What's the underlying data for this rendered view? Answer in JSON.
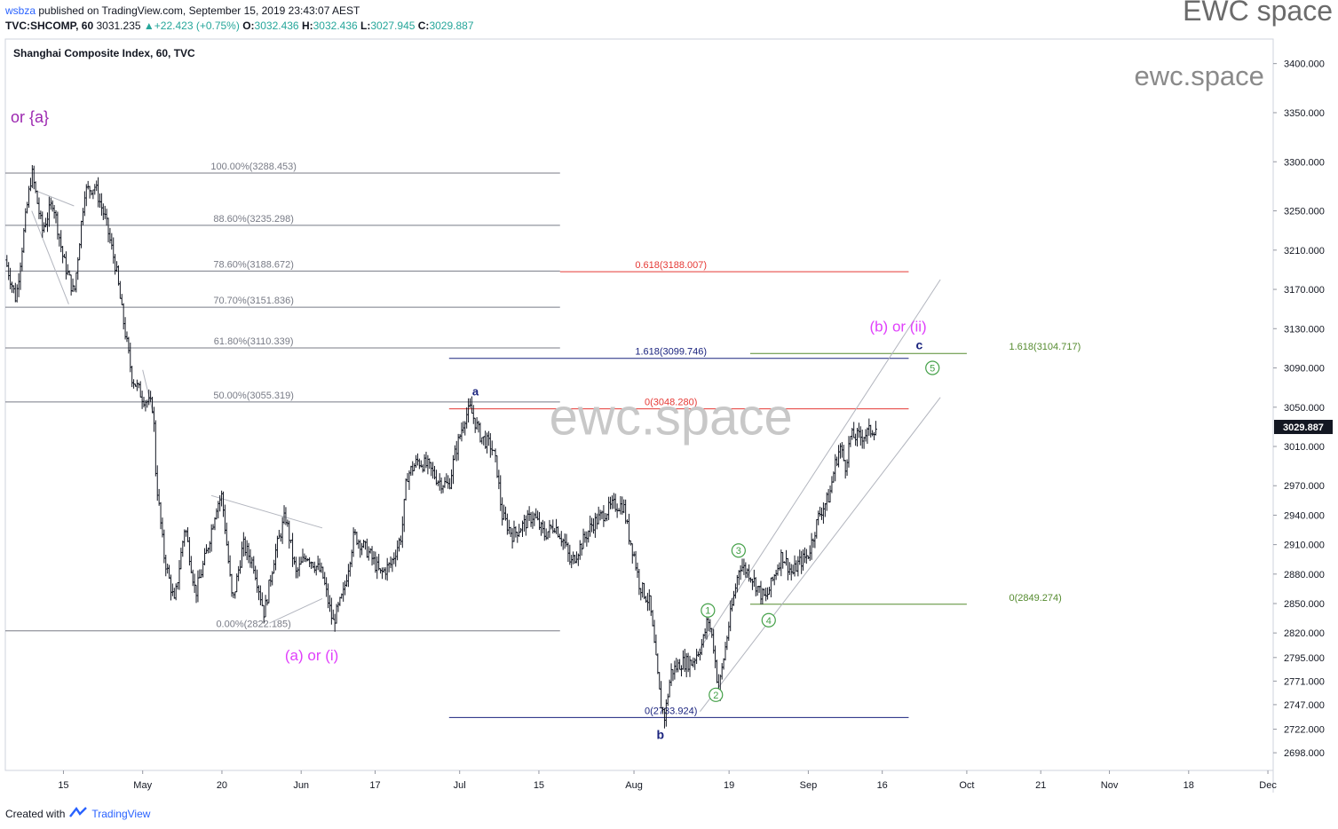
{
  "header": {
    "user": "wsbza",
    "published": "published on TradingView.com, September 15, 2019 23:43:07 AEST",
    "symbol": "TVC:SHCOMP, 60",
    "last": "3031.235",
    "change": "+22.423 (+0.75%)",
    "o_label": "O:",
    "o": "3032.436",
    "h_label": "H:",
    "h": "3032.436",
    "l_label": "L:",
    "l": "3027.945",
    "c_label": "C:",
    "c": "3029.887"
  },
  "brand": "EWC space",
  "footer": {
    "created": "Created with",
    "tv": "TradingView"
  },
  "colors": {
    "fib": "#787b86",
    "red": "#e53935",
    "blue": "#1a237e",
    "green": "#558b2f",
    "magenta": "#e040fb",
    "purple": "#9c27b0",
    "candle": "#131722",
    "price_tag": "#131722",
    "channel": "#b2b5be"
  },
  "chart_data": {
    "type": "candlestick",
    "title": "Shanghai Composite Index, 60, TVC",
    "last_price": "3029.887",
    "y_axis": {
      "range": [
        2680,
        3425
      ],
      "ticks": [
        {
          "v": 3400,
          "label": "3400.000"
        },
        {
          "v": 3350,
          "label": "3350.000"
        },
        {
          "v": 3300,
          "label": "3300.000"
        },
        {
          "v": 3250,
          "label": "3250.000"
        },
        {
          "v": 3210,
          "label": "3210.000"
        },
        {
          "v": 3170,
          "label": "3170.000"
        },
        {
          "v": 3130,
          "label": "3130.000"
        },
        {
          "v": 3090,
          "label": "3090.000"
        },
        {
          "v": 3050,
          "label": "3050.000"
        },
        {
          "v": 3010,
          "label": "3010.000"
        },
        {
          "v": 2970,
          "label": "2970.000"
        },
        {
          "v": 2940,
          "label": "2940.000"
        },
        {
          "v": 2910,
          "label": "2910.000"
        },
        {
          "v": 2880,
          "label": "2880.000"
        },
        {
          "v": 2850,
          "label": "2850.000"
        },
        {
          "v": 2820,
          "label": "2820.000"
        },
        {
          "v": 2795,
          "label": "2795.000"
        },
        {
          "v": 2771,
          "label": "2771.000"
        },
        {
          "v": 2747,
          "label": "2747.000"
        },
        {
          "v": 2722,
          "label": "2722.000"
        },
        {
          "v": 2698,
          "label": "2698.000"
        }
      ]
    },
    "x_axis": {
      "range": [
        0,
        240
      ],
      "ticks": [
        {
          "v": 11,
          "label": "15"
        },
        {
          "v": 26,
          "label": "May"
        },
        {
          "v": 41,
          "label": "20"
        },
        {
          "v": 56,
          "label": "Jun"
        },
        {
          "v": 70,
          "label": "17"
        },
        {
          "v": 86,
          "label": "Jul"
        },
        {
          "v": 101,
          "label": "15"
        },
        {
          "v": 119,
          "label": "Aug"
        },
        {
          "v": 137,
          "label": "19"
        },
        {
          "v": 152,
          "label": "Sep"
        },
        {
          "v": 166,
          "label": "16"
        },
        {
          "v": 182,
          "label": "Oct"
        },
        {
          "v": 196,
          "label": "21"
        },
        {
          "v": 209,
          "label": "Nov"
        },
        {
          "v": 224,
          "label": "18"
        },
        {
          "v": 239,
          "label": "Dec"
        }
      ]
    },
    "price_path": [
      [
        0,
        3200
      ],
      [
        2,
        3160
      ],
      [
        4,
        3250
      ],
      [
        5,
        3290
      ],
      [
        7,
        3230
      ],
      [
        9,
        3260
      ],
      [
        11,
        3200
      ],
      [
        13,
        3165
      ],
      [
        15,
        3270
      ],
      [
        17,
        3275
      ],
      [
        19,
        3240
      ],
      [
        21,
        3190
      ],
      [
        22,
        3150
      ],
      [
        24,
        3080
      ],
      [
        26,
        3060
      ],
      [
        28,
        3050
      ],
      [
        28.5,
        2980
      ],
      [
        30,
        2900
      ],
      [
        32,
        2850
      ],
      [
        34,
        2930
      ],
      [
        36,
        2860
      ],
      [
        38,
        2900
      ],
      [
        40,
        2950
      ],
      [
        41,
        2960
      ],
      [
        43,
        2850
      ],
      [
        45,
        2910
      ],
      [
        47,
        2890
      ],
      [
        49,
        2840
      ],
      [
        51,
        2900
      ],
      [
        53,
        2940
      ],
      [
        55,
        2880
      ],
      [
        57,
        2900
      ],
      [
        60,
        2880
      ],
      [
        62,
        2830
      ],
      [
        64,
        2860
      ],
      [
        66,
        2920
      ],
      [
        69,
        2900
      ],
      [
        71,
        2880
      ],
      [
        73,
        2890
      ],
      [
        75,
        2920
      ],
      [
        76,
        2980
      ],
      [
        78,
        2995
      ],
      [
        80,
        2990
      ],
      [
        82,
        2975
      ],
      [
        84,
        2970
      ],
      [
        85,
        3000
      ],
      [
        87,
        3040
      ],
      [
        88,
        3048
      ],
      [
        90,
        3020
      ],
      [
        92,
        3010
      ],
      [
        93,
        2990
      ],
      [
        94,
        2940
      ],
      [
        96,
        2920
      ],
      [
        98,
        2930
      ],
      [
        100,
        2940
      ],
      [
        102,
        2920
      ],
      [
        104,
        2930
      ],
      [
        106,
        2910
      ],
      [
        107,
        2890
      ],
      [
        109,
        2910
      ],
      [
        111,
        2930
      ],
      [
        113,
        2940
      ],
      [
        115,
        2950
      ],
      [
        117,
        2950
      ],
      [
        118,
        2920
      ],
      [
        119,
        2900
      ],
      [
        120,
        2870
      ],
      [
        122,
        2850
      ],
      [
        123,
        2800
      ],
      [
        124,
        2750
      ],
      [
        124.8,
        2734
      ],
      [
        126,
        2780
      ],
      [
        128,
        2790
      ],
      [
        130,
        2790
      ],
      [
        132,
        2810
      ],
      [
        133,
        2835
      ],
      [
        134,
        2810
      ],
      [
        135,
        2760
      ],
      [
        137,
        2830
      ],
      [
        138,
        2860
      ],
      [
        139,
        2890
      ],
      [
        141,
        2880
      ],
      [
        143,
        2860
      ],
      [
        144,
        2855
      ],
      [
        145,
        2870
      ],
      [
        147,
        2900
      ],
      [
        149,
        2880
      ],
      [
        150,
        2890
      ],
      [
        152,
        2900
      ],
      [
        154,
        2940
      ],
      [
        156,
        2960
      ],
      [
        157,
        2990
      ],
      [
        158,
        3010
      ],
      [
        159,
        2990
      ],
      [
        160,
        3020
      ],
      [
        162,
        3020
      ],
      [
        163.5,
        3025
      ],
      [
        165,
        3030
      ]
    ],
    "horizontal_levels": [
      {
        "label": "100.00%(3288.453)",
        "price": 3288.453,
        "x0": 0,
        "x1": 105,
        "color": "fib",
        "label_x": 47
      },
      {
        "label": "88.60%(3235.298)",
        "price": 3235.298,
        "x0": 0,
        "x1": 105,
        "color": "fib",
        "label_x": 47
      },
      {
        "label": "78.60%(3188.672)",
        "price": 3188.672,
        "x0": 0,
        "x1": 105,
        "color": "fib",
        "label_x": 47
      },
      {
        "label": "70.70%(3151.836)",
        "price": 3151.836,
        "x0": 0,
        "x1": 105,
        "color": "fib",
        "label_x": 47
      },
      {
        "label": "61.80%(3110.339)",
        "price": 3110.339,
        "x0": 0,
        "x1": 105,
        "color": "fib",
        "label_x": 47
      },
      {
        "label": "50.00%(3055.319)",
        "price": 3055.319,
        "x0": 0,
        "x1": 105,
        "color": "fib",
        "label_x": 47
      },
      {
        "label": "0.00%(2822.185)",
        "price": 2822.185,
        "x0": 0,
        "x1": 105,
        "color": "fib",
        "label_x": 47
      },
      {
        "label": "0.618(3188.007)",
        "price": 3188.007,
        "x0": 105,
        "x1": 171,
        "color": "red",
        "label_x": 126
      },
      {
        "label": "0(3048.280)",
        "price": 3048.28,
        "x0": 84,
        "x1": 171,
        "color": "red",
        "label_x": 126
      },
      {
        "label": "1.618(3099.746)",
        "price": 3099.746,
        "x0": 84,
        "x1": 171,
        "color": "blue",
        "label_x": 126
      },
      {
        "label": "0(2733.924)",
        "price": 2733.924,
        "x0": 84,
        "x1": 171,
        "color": "blue",
        "label_x": 126
      },
      {
        "label": "1.618(3104.717)",
        "price": 3104.717,
        "x0": 141,
        "x1": 182,
        "color": "green",
        "label_x": 190
      },
      {
        "label": "0(2849.274)",
        "price": 2849.274,
        "x0": 141,
        "x1": 182,
        "color": "green",
        "label_x": 190
      }
    ],
    "wave_labels": [
      {
        "text": "or {a}",
        "x": 1,
        "price": 3340,
        "color": "purple",
        "size": 18
      },
      {
        "text": "(a) or (i)",
        "x": 58,
        "price": 2792,
        "color": "magenta",
        "size": 17
      },
      {
        "text": "a",
        "x": 89,
        "price": 3062,
        "color": "blue",
        "size": 13,
        "bold": true
      },
      {
        "text": "b",
        "x": 124,
        "price": 2712,
        "color": "blue",
        "size": 14,
        "bold": true
      },
      {
        "text": "(b) or (ii)",
        "x": 169,
        "price": 3127,
        "color": "magenta",
        "size": 17
      },
      {
        "text": "c",
        "x": 173,
        "price": 3109,
        "color": "blue",
        "size": 14,
        "bold": true
      }
    ],
    "circled_labels": [
      {
        "text": "1",
        "x": 133,
        "price": 2843
      },
      {
        "text": "2",
        "x": 134.5,
        "price": 2757
      },
      {
        "text": "3",
        "x": 138.8,
        "price": 2904
      },
      {
        "text": "4",
        "x": 144.5,
        "price": 2833
      },
      {
        "text": "5",
        "x": 175.5,
        "price": 3090
      }
    ],
    "channel_lines": [
      {
        "x0": 131,
        "p0": 2800,
        "x1": 177,
        "p1": 3180
      },
      {
        "x0": 131.5,
        "p0": 2740,
        "x1": 177,
        "p1": 3060
      }
    ],
    "triangle_lines": [
      {
        "x0": 6,
        "p0": 3270,
        "x1": 13,
        "p1": 3255
      },
      {
        "x0": 5,
        "p0": 3250,
        "x1": 12,
        "p1": 3155
      },
      {
        "x0": 26,
        "p0": 3088,
        "x1": 28,
        "p1": 3043
      },
      {
        "x0": 39,
        "p0": 2960,
        "x1": 60,
        "p1": 2927
      },
      {
        "x0": 50,
        "p0": 2830,
        "x1": 60,
        "p1": 2855
      }
    ],
    "watermarks": [
      {
        "text": "ewc.space",
        "x": 126,
        "price": 3022,
        "size": 58,
        "color": "#c8c8c8"
      },
      {
        "text": "ewc.space",
        "x": 226,
        "price": 3378,
        "size": 31,
        "color": "#8a8a8a"
      }
    ]
  }
}
